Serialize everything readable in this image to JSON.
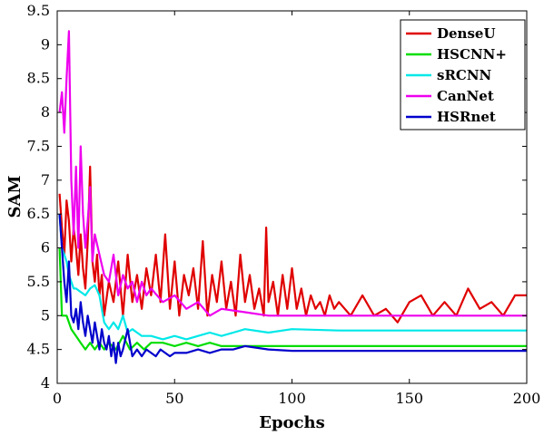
{
  "chart_data": {
    "type": "line",
    "title": "",
    "xlabel": "Epochs",
    "ylabel": "SAM",
    "xlim": [
      0,
      200
    ],
    "ylim": [
      4,
      9.5
    ],
    "xticks": [
      0,
      50,
      100,
      150,
      200
    ],
    "yticks": [
      4,
      4.5,
      5,
      5.5,
      6,
      6.5,
      7,
      7.5,
      8,
      8.5,
      9,
      9.5
    ],
    "grid": false,
    "legend_position": "top-right",
    "series": [
      {
        "name": "DenseU",
        "color": "#e00000",
        "x": [
          1,
          2,
          3,
          4,
          5,
          6,
          7,
          8,
          9,
          10,
          11,
          12,
          13,
          14,
          15,
          16,
          17,
          18,
          19,
          20,
          22,
          24,
          26,
          28,
          30,
          32,
          34,
          36,
          38,
          40,
          42,
          44,
          46,
          48,
          50,
          52,
          54,
          56,
          58,
          60,
          62,
          64,
          66,
          68,
          70,
          72,
          74,
          76,
          78,
          80,
          82,
          84,
          86,
          88,
          89,
          90,
          92,
          94,
          96,
          98,
          100,
          102,
          104,
          106,
          108,
          110,
          112,
          114,
          116,
          118,
          120,
          125,
          130,
          135,
          140,
          145,
          150,
          155,
          160,
          165,
          170,
          175,
          180,
          185,
          190,
          195,
          200
        ],
        "values": [
          6.8,
          6.3,
          5.9,
          6.7,
          6.4,
          5.8,
          6.3,
          6.0,
          5.6,
          6.2,
          5.7,
          5.4,
          6.1,
          7.2,
          5.8,
          5.5,
          5.9,
          5.3,
          5.6,
          5.0,
          5.5,
          5.2,
          5.8,
          5.0,
          5.9,
          5.2,
          5.6,
          5.1,
          5.7,
          5.3,
          5.9,
          5.2,
          6.2,
          5.1,
          5.8,
          5.0,
          5.6,
          5.3,
          5.7,
          5.1,
          6.1,
          5.0,
          5.6,
          5.2,
          5.8,
          5.1,
          5.5,
          5.0,
          5.9,
          5.2,
          5.6,
          5.1,
          5.4,
          5.0,
          6.3,
          5.2,
          5.5,
          5.0,
          5.6,
          5.1,
          5.7,
          5.1,
          5.4,
          5.0,
          5.3,
          5.1,
          5.2,
          5.0,
          5.3,
          5.1,
          5.2,
          5.0,
          5.3,
          5.0,
          5.1,
          4.9,
          5.2,
          5.3,
          5.0,
          5.2,
          5.0,
          5.4,
          5.1,
          5.2,
          5.0,
          5.3,
          5.3
        ]
      },
      {
        "name": "HSCNN+",
        "color": "#00dd00",
        "x": [
          1,
          2,
          3,
          4,
          5,
          6,
          8,
          10,
          12,
          14,
          16,
          18,
          20,
          22,
          25,
          28,
          31,
          34,
          37,
          40,
          45,
          50,
          55,
          60,
          65,
          70,
          80,
          90,
          100,
          120,
          140,
          160,
          180,
          200
        ],
        "values": [
          6.0,
          5.0,
          5.0,
          5.0,
          4.9,
          4.8,
          4.7,
          4.6,
          4.5,
          4.6,
          4.5,
          4.6,
          4.5,
          4.6,
          4.5,
          4.7,
          4.5,
          4.6,
          4.5,
          4.6,
          4.6,
          4.55,
          4.6,
          4.55,
          4.6,
          4.55,
          4.55,
          4.55,
          4.55,
          4.55,
          4.55,
          4.55,
          4.55,
          4.55
        ]
      },
      {
        "name": "sRCNN",
        "color": "#00e8e8",
        "x": [
          1,
          2,
          3,
          4,
          5,
          6,
          7,
          8,
          10,
          12,
          14,
          16,
          18,
          20,
          22,
          24,
          26,
          28,
          30,
          32,
          34,
          36,
          40,
          45,
          50,
          55,
          60,
          65,
          70,
          75,
          80,
          90,
          100,
          120,
          140,
          160,
          180,
          200
        ],
        "values": [
          6.5,
          6.0,
          5.9,
          5.8,
          5.6,
          5.5,
          5.4,
          5.4,
          5.35,
          5.3,
          5.4,
          5.45,
          5.3,
          4.9,
          4.8,
          4.9,
          4.8,
          5.0,
          4.75,
          4.8,
          4.75,
          4.7,
          4.7,
          4.65,
          4.7,
          4.65,
          4.7,
          4.75,
          4.7,
          4.75,
          4.8,
          4.75,
          4.8,
          4.78,
          4.78,
          4.78,
          4.78,
          4.78
        ]
      },
      {
        "name": "CanNet",
        "color": "#ee00ee",
        "x": [
          1,
          2,
          3,
          4,
          5,
          6,
          7,
          8,
          9,
          10,
          11,
          12,
          13,
          14,
          15,
          16,
          18,
          20,
          22,
          24,
          26,
          28,
          30,
          32,
          34,
          36,
          38,
          40,
          45,
          50,
          55,
          60,
          65,
          70,
          80,
          90,
          100,
          120,
          140,
          160,
          180,
          200
        ],
        "values": [
          8.0,
          8.3,
          7.7,
          8.5,
          9.2,
          7.0,
          6.2,
          7.2,
          6.0,
          7.5,
          6.5,
          6.0,
          6.4,
          6.9,
          5.8,
          6.2,
          5.9,
          5.6,
          5.5,
          5.9,
          5.3,
          5.6,
          5.4,
          5.5,
          5.2,
          5.5,
          5.3,
          5.4,
          5.2,
          5.3,
          5.1,
          5.2,
          5.0,
          5.1,
          5.05,
          5.0,
          5.0,
          5.0,
          5.0,
          5.0,
          5.0,
          5.0
        ]
      },
      {
        "name": "HSRnet",
        "color": "#0000cc",
        "x": [
          1,
          2,
          3,
          4,
          5,
          6,
          7,
          8,
          9,
          10,
          11,
          12,
          13,
          14,
          15,
          16,
          17,
          18,
          19,
          20,
          21,
          22,
          23,
          24,
          25,
          26,
          27,
          28,
          30,
          32,
          34,
          36,
          38,
          40,
          42,
          44,
          46,
          48,
          50,
          55,
          60,
          65,
          70,
          75,
          80,
          90,
          100,
          120,
          140,
          160,
          180,
          200
        ],
        "values": [
          6.5,
          6.0,
          5.5,
          5.2,
          5.8,
          5.0,
          4.9,
          5.1,
          4.8,
          5.2,
          4.9,
          4.7,
          5.0,
          4.8,
          4.6,
          4.9,
          4.7,
          4.5,
          4.8,
          4.6,
          4.5,
          4.7,
          4.4,
          4.6,
          4.3,
          4.6,
          4.4,
          4.5,
          4.8,
          4.4,
          4.5,
          4.4,
          4.5,
          4.45,
          4.4,
          4.5,
          4.45,
          4.4,
          4.45,
          4.45,
          4.5,
          4.45,
          4.5,
          4.5,
          4.55,
          4.5,
          4.48,
          4.48,
          4.48,
          4.48,
          4.48,
          4.48
        ]
      }
    ]
  }
}
